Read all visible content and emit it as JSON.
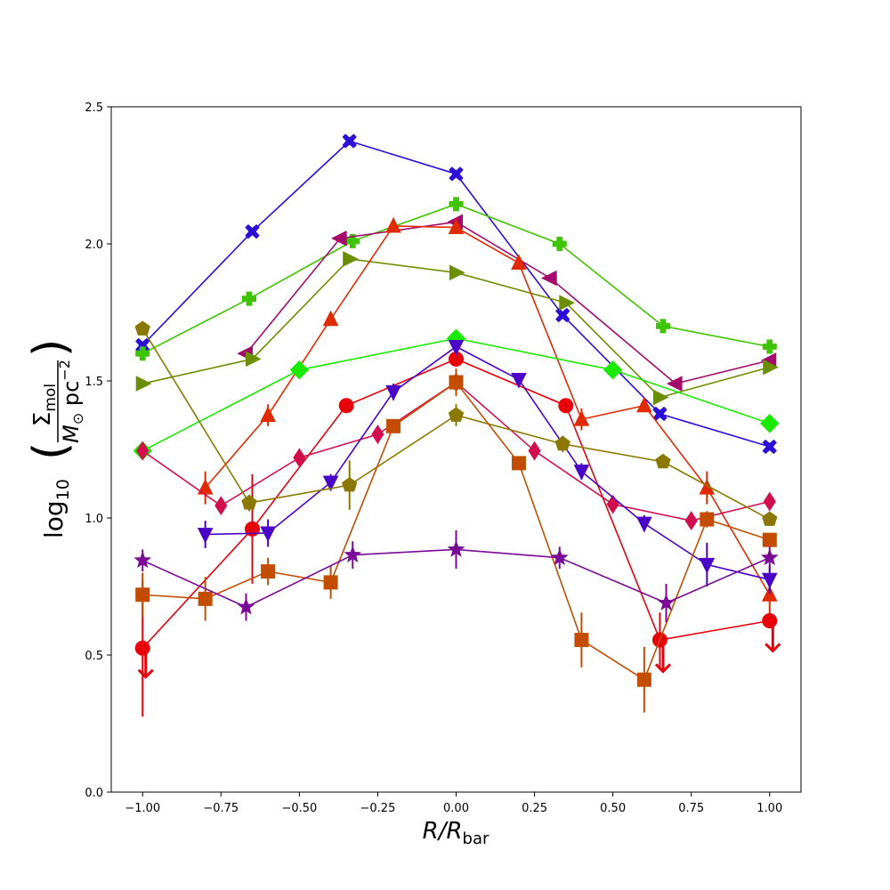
{
  "chart_data": {
    "type": "line",
    "title": "",
    "xlabel": "R/R",
    "xlabel_sub": "bar",
    "ylabel_prefix": "log",
    "ylabel_prefix_sub": "10",
    "ylabel_num": "Σ",
    "ylabel_num_sub": "mol",
    "ylabel_den_a": "M",
    "ylabel_den_sun": "⊙",
    "ylabel_den_b": " pc",
    "ylabel_den_sup": "−2",
    "xlim": [
      -1.1,
      1.1
    ],
    "ylim": [
      0.0,
      2.5
    ],
    "x_ticks": [
      -1.0,
      -0.75,
      -0.5,
      -0.25,
      0.0,
      0.25,
      0.5,
      0.75,
      1.0
    ],
    "x_tick_labels": [
      "−1.00",
      "−0.75",
      "−0.50",
      "−0.25",
      "0.00",
      "0.25",
      "0.50",
      "0.75",
      "1.00"
    ],
    "y_ticks": [
      0.0,
      0.5,
      1.0,
      1.5,
      2.0,
      2.5
    ],
    "y_tick_labels": [
      "0.0",
      "0.5",
      "1.0",
      "1.5",
      "2.0",
      "2.5"
    ],
    "grid": false,
    "legend": "none",
    "series": [
      {
        "color": "#2b0fd6",
        "marker": "X",
        "points": [
          {
            "x": -1.0,
            "y": 1.63
          },
          {
            "x": -0.65,
            "y": 2.045
          },
          {
            "x": -0.34,
            "y": 2.375
          },
          {
            "x": 0.0,
            "y": 2.255
          },
          {
            "x": 0.34,
            "y": 1.74
          },
          {
            "x": 0.65,
            "y": 1.38
          },
          {
            "x": 1.0,
            "y": 1.26
          }
        ]
      },
      {
        "color": "#3ec400",
        "marker": "P",
        "points": [
          {
            "x": -1.0,
            "y": 1.6
          },
          {
            "x": -0.66,
            "y": 1.8
          },
          {
            "x": -0.33,
            "y": 2.01
          },
          {
            "x": 0.0,
            "y": 2.145
          },
          {
            "x": 0.33,
            "y": 2.0
          },
          {
            "x": 0.66,
            "y": 1.7
          },
          {
            "x": 1.0,
            "y": 1.625
          }
        ]
      },
      {
        "color": "#a30a6b",
        "marker": "<",
        "points": [
          {
            "x": -0.67,
            "y": 1.6
          },
          {
            "x": -0.37,
            "y": 2.02
          },
          {
            "x": 0.0,
            "y": 2.08
          },
          {
            "x": 0.3,
            "y": 1.875
          },
          {
            "x": 0.7,
            "y": 1.49
          },
          {
            "x": 1.0,
            "y": 1.575
          }
        ]
      },
      {
        "color": "#6b8f00",
        "marker": ">",
        "points": [
          {
            "x": -1.0,
            "y": 1.49
          },
          {
            "x": -0.65,
            "y": 1.58
          },
          {
            "x": -0.34,
            "y": 1.945
          },
          {
            "x": 0.0,
            "y": 1.895
          },
          {
            "x": 0.35,
            "y": 1.785
          },
          {
            "x": 0.65,
            "y": 1.44
          },
          {
            "x": 1.0,
            "y": 1.55
          }
        ]
      },
      {
        "color": "#e12a00",
        "marker": "^",
        "points": [
          {
            "x": -0.8,
            "y": 1.11
          },
          {
            "x": -0.6,
            "y": 1.375
          },
          {
            "x": -0.4,
            "y": 1.725
          },
          {
            "x": -0.2,
            "y": 2.065
          },
          {
            "x": 0.0,
            "y": 2.06
          },
          {
            "x": 0.2,
            "y": 1.93
          },
          {
            "x": 0.4,
            "y": 1.36
          },
          {
            "x": 0.6,
            "y": 1.41
          },
          {
            "x": 0.8,
            "y": 1.11
          },
          {
            "x": 1.0,
            "y": 0.72
          }
        ],
        "errors": [
          0.06,
          0.04,
          0.0,
          0.0,
          0.0,
          0.0,
          0.04,
          0.0,
          0.06,
          0.1
        ]
      },
      {
        "color": "#19ea00",
        "marker": "D",
        "points": [
          {
            "x": -1.0,
            "y": 1.245
          },
          {
            "x": -0.5,
            "y": 1.54
          },
          {
            "x": 0.0,
            "y": 1.655
          },
          {
            "x": 0.5,
            "y": 1.54
          },
          {
            "x": 1.0,
            "y": 1.345
          }
        ]
      },
      {
        "color": "#e8000b",
        "marker": "o",
        "points": [
          {
            "x": -1.0,
            "y": 0.525
          },
          {
            "x": -0.65,
            "y": 0.96
          },
          {
            "x": -0.35,
            "y": 1.41
          },
          {
            "x": 0.0,
            "y": 1.58
          },
          {
            "x": 0.35,
            "y": 1.41
          },
          {
            "x": 0.65,
            "y": 0.555
          },
          {
            "x": 1.0,
            "y": 0.625
          }
        ],
        "errors": [
          0.25,
          0.2,
          0.0,
          0.0,
          0.0,
          0.1,
          0.0
        ],
        "upper_limits": [
          {
            "x": -0.99,
            "y": 0.42
          },
          {
            "x": 0.66,
            "y": 0.44
          },
          {
            "x": 1.01,
            "y": 0.515
          }
        ]
      },
      {
        "color": "#d10f4f",
        "marker": "d",
        "points": [
          {
            "x": -1.0,
            "y": 1.245
          },
          {
            "x": -0.75,
            "y": 1.045
          },
          {
            "x": -0.5,
            "y": 1.22
          },
          {
            "x": -0.25,
            "y": 1.305
          },
          {
            "x": 0.0,
            "y": 1.495
          },
          {
            "x": 0.25,
            "y": 1.245
          },
          {
            "x": 0.5,
            "y": 1.05
          },
          {
            "x": 0.75,
            "y": 0.99
          },
          {
            "x": 1.0,
            "y": 1.06
          }
        ]
      },
      {
        "color": "#4a00c7",
        "marker": "v",
        "points": [
          {
            "x": -0.8,
            "y": 0.94
          },
          {
            "x": -0.6,
            "y": 0.945
          },
          {
            "x": -0.4,
            "y": 1.13
          },
          {
            "x": -0.2,
            "y": 1.46
          },
          {
            "x": 0.0,
            "y": 1.625
          },
          {
            "x": 0.2,
            "y": 1.505
          },
          {
            "x": 0.4,
            "y": 1.17
          },
          {
            "x": 0.6,
            "y": 0.98
          },
          {
            "x": 0.8,
            "y": 0.83
          },
          {
            "x": 1.0,
            "y": 0.775
          }
        ],
        "errors": [
          0.05,
          0.05,
          0.03,
          0.03,
          0.0,
          0.0,
          0.03,
          0.03,
          0.08,
          0.05
        ]
      },
      {
        "color": "#8a7800",
        "marker": "p",
        "points": [
          {
            "x": -1.0,
            "y": 1.69
          },
          {
            "x": -0.66,
            "y": 1.055
          },
          {
            "x": -0.34,
            "y": 1.12
          },
          {
            "x": 0.0,
            "y": 1.375
          },
          {
            "x": 0.34,
            "y": 1.27
          },
          {
            "x": 0.66,
            "y": 1.205
          },
          {
            "x": 1.0,
            "y": 0.995
          }
        ],
        "errors": [
          0.0,
          0.03,
          0.09,
          0.04,
          0.03,
          0.0,
          0.0
        ]
      },
      {
        "color": "#c24d00",
        "marker": "s",
        "points": [
          {
            "x": -1.0,
            "y": 0.72
          },
          {
            "x": -0.8,
            "y": 0.705
          },
          {
            "x": -0.6,
            "y": 0.805
          },
          {
            "x": -0.4,
            "y": 0.765
          },
          {
            "x": -0.2,
            "y": 1.335
          },
          {
            "x": 0.0,
            "y": 1.495
          },
          {
            "x": 0.2,
            "y": 1.2
          },
          {
            "x": 0.4,
            "y": 0.555
          },
          {
            "x": 0.6,
            "y": 0.41
          },
          {
            "x": 0.8,
            "y": 0.995
          },
          {
            "x": 1.0,
            "y": 0.92
          }
        ],
        "errors": [
          0.08,
          0.08,
          0.05,
          0.06,
          0.0,
          0.05,
          0.0,
          0.1,
          0.12,
          0.03,
          0.0
        ]
      },
      {
        "color": "#7a0a96",
        "marker": "*",
        "points": [
          {
            "x": -1.0,
            "y": 0.845
          },
          {
            "x": -0.67,
            "y": 0.675
          },
          {
            "x": -0.33,
            "y": 0.865
          },
          {
            "x": 0.0,
            "y": 0.885
          },
          {
            "x": 0.33,
            "y": 0.855
          },
          {
            "x": 0.67,
            "y": 0.69
          },
          {
            "x": 1.0,
            "y": 0.855
          }
        ],
        "errors": [
          0.04,
          0.05,
          0.05,
          0.07,
          0.04,
          0.07,
          0.04
        ]
      }
    ]
  }
}
